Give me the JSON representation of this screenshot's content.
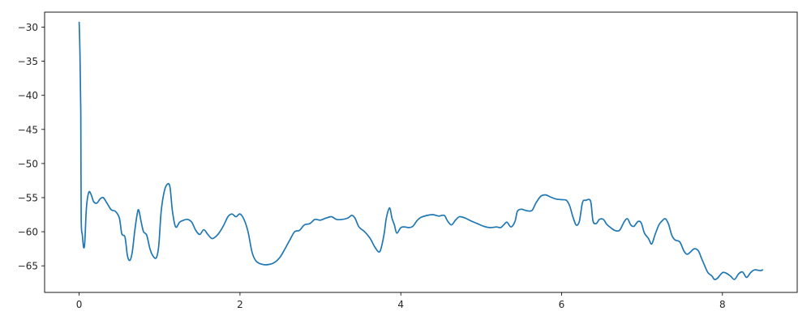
{
  "chart_data": {
    "type": "line",
    "title": "",
    "xlabel": "",
    "ylabel": "",
    "xlim": [
      -0.43,
      8.93
    ],
    "ylim": [
      -68.9,
      -27.8
    ],
    "grid": false,
    "legend": "none",
    "x_ticks": [
      0,
      2,
      4,
      6,
      8
    ],
    "x_tick_labels": [
      "0",
      "2",
      "4",
      "6",
      "8"
    ],
    "y_ticks": [
      -30,
      -35,
      -40,
      -45,
      -50,
      -55,
      -60,
      -65
    ],
    "y_tick_labels": [
      "−30",
      "−35",
      "−40",
      "−45",
      "−50",
      "−55",
      "−60",
      "−65"
    ],
    "series": [
      {
        "color": "#1f77b4",
        "points": [
          [
            0.0,
            -29.3
          ],
          [
            0.01,
            -34.0
          ],
          [
            0.02,
            -42.5
          ],
          [
            0.025,
            -58.0
          ],
          [
            0.04,
            -60.5
          ],
          [
            0.055,
            -62.3
          ],
          [
            0.07,
            -61.5
          ],
          [
            0.09,
            -56.5
          ],
          [
            0.12,
            -54.2
          ],
          [
            0.15,
            -54.6
          ],
          [
            0.18,
            -55.6
          ],
          [
            0.22,
            -55.8
          ],
          [
            0.26,
            -55.2
          ],
          [
            0.3,
            -55.0
          ],
          [
            0.35,
            -55.9
          ],
          [
            0.4,
            -56.8
          ],
          [
            0.45,
            -57.0
          ],
          [
            0.5,
            -58.0
          ],
          [
            0.53,
            -60.3
          ],
          [
            0.57,
            -60.8
          ],
          [
            0.6,
            -63.5
          ],
          [
            0.63,
            -64.2
          ],
          [
            0.66,
            -63.0
          ],
          [
            0.69,
            -60.0
          ],
          [
            0.72,
            -57.5
          ],
          [
            0.74,
            -56.8
          ],
          [
            0.77,
            -58.5
          ],
          [
            0.8,
            -60.0
          ],
          [
            0.84,
            -60.5
          ],
          [
            0.88,
            -62.5
          ],
          [
            0.92,
            -63.6
          ],
          [
            0.96,
            -63.8
          ],
          [
            0.99,
            -62.0
          ],
          [
            1.02,
            -57.0
          ],
          [
            1.06,
            -54.0
          ],
          [
            1.1,
            -53.0
          ],
          [
            1.13,
            -53.5
          ],
          [
            1.16,
            -57.0
          ],
          [
            1.2,
            -59.3
          ],
          [
            1.25,
            -58.6
          ],
          [
            1.3,
            -58.3
          ],
          [
            1.35,
            -58.2
          ],
          [
            1.4,
            -58.6
          ],
          [
            1.45,
            -59.8
          ],
          [
            1.5,
            -60.4
          ],
          [
            1.55,
            -59.7
          ],
          [
            1.6,
            -60.4
          ],
          [
            1.65,
            -61.0
          ],
          [
            1.7,
            -60.7
          ],
          [
            1.75,
            -60.0
          ],
          [
            1.8,
            -59.0
          ],
          [
            1.85,
            -57.8
          ],
          [
            1.9,
            -57.4
          ],
          [
            1.95,
            -57.8
          ],
          [
            2.0,
            -57.4
          ],
          [
            2.05,
            -58.2
          ],
          [
            2.1,
            -60.0
          ],
          [
            2.15,
            -63.0
          ],
          [
            2.2,
            -64.3
          ],
          [
            2.28,
            -64.8
          ],
          [
            2.36,
            -64.8
          ],
          [
            2.43,
            -64.5
          ],
          [
            2.5,
            -63.7
          ],
          [
            2.56,
            -62.5
          ],
          [
            2.62,
            -61.2
          ],
          [
            2.68,
            -60.0
          ],
          [
            2.74,
            -59.8
          ],
          [
            2.8,
            -59.0
          ],
          [
            2.87,
            -58.8
          ],
          [
            2.93,
            -58.2
          ],
          [
            3.0,
            -58.3
          ],
          [
            3.07,
            -58.0
          ],
          [
            3.14,
            -57.8
          ],
          [
            3.2,
            -58.2
          ],
          [
            3.27,
            -58.2
          ],
          [
            3.34,
            -58.0
          ],
          [
            3.39,
            -57.6
          ],
          [
            3.43,
            -58.0
          ],
          [
            3.48,
            -59.3
          ],
          [
            3.55,
            -60.0
          ],
          [
            3.62,
            -61.0
          ],
          [
            3.68,
            -62.3
          ],
          [
            3.74,
            -62.9
          ],
          [
            3.79,
            -60.5
          ],
          [
            3.82,
            -58.0
          ],
          [
            3.86,
            -56.5
          ],
          [
            3.89,
            -58.0
          ],
          [
            3.92,
            -59.0
          ],
          [
            3.95,
            -60.2
          ],
          [
            4.0,
            -59.4
          ],
          [
            4.05,
            -59.3
          ],
          [
            4.1,
            -59.4
          ],
          [
            4.15,
            -59.2
          ],
          [
            4.2,
            -58.4
          ],
          [
            4.25,
            -57.9
          ],
          [
            4.33,
            -57.6
          ],
          [
            4.4,
            -57.5
          ],
          [
            4.47,
            -57.7
          ],
          [
            4.54,
            -57.6
          ],
          [
            4.58,
            -58.4
          ],
          [
            4.63,
            -59.0
          ],
          [
            4.68,
            -58.3
          ],
          [
            4.73,
            -57.8
          ],
          [
            4.8,
            -58.0
          ],
          [
            4.87,
            -58.4
          ],
          [
            4.95,
            -58.8
          ],
          [
            5.03,
            -59.2
          ],
          [
            5.11,
            -59.4
          ],
          [
            5.19,
            -59.3
          ],
          [
            5.24,
            -59.4
          ],
          [
            5.28,
            -59.0
          ],
          [
            5.32,
            -58.6
          ],
          [
            5.37,
            -59.3
          ],
          [
            5.42,
            -58.5
          ],
          [
            5.45,
            -57.0
          ],
          [
            5.5,
            -56.7
          ],
          [
            5.56,
            -56.9
          ],
          [
            5.63,
            -56.9
          ],
          [
            5.68,
            -55.8
          ],
          [
            5.74,
            -54.8
          ],
          [
            5.8,
            -54.6
          ],
          [
            5.86,
            -54.9
          ],
          [
            5.93,
            -55.2
          ],
          [
            6.0,
            -55.3
          ],
          [
            6.06,
            -55.4
          ],
          [
            6.1,
            -56.2
          ],
          [
            6.14,
            -57.8
          ],
          [
            6.18,
            -59.0
          ],
          [
            6.22,
            -58.5
          ],
          [
            6.26,
            -55.7
          ],
          [
            6.3,
            -55.4
          ],
          [
            6.36,
            -55.5
          ],
          [
            6.39,
            -58.4
          ],
          [
            6.43,
            -58.8
          ],
          [
            6.47,
            -58.2
          ],
          [
            6.52,
            -58.2
          ],
          [
            6.56,
            -58.9
          ],
          [
            6.61,
            -59.4
          ],
          [
            6.66,
            -59.8
          ],
          [
            6.72,
            -59.8
          ],
          [
            6.78,
            -58.5
          ],
          [
            6.82,
            -58.1
          ],
          [
            6.86,
            -59.0
          ],
          [
            6.9,
            -59.2
          ],
          [
            6.95,
            -58.5
          ],
          [
            6.99,
            -58.7
          ],
          [
            7.03,
            -60.2
          ],
          [
            7.08,
            -61.0
          ],
          [
            7.12,
            -61.8
          ],
          [
            7.16,
            -60.5
          ],
          [
            7.21,
            -59.0
          ],
          [
            7.25,
            -58.4
          ],
          [
            7.29,
            -58.1
          ],
          [
            7.33,
            -58.9
          ],
          [
            7.37,
            -60.5
          ],
          [
            7.41,
            -61.2
          ],
          [
            7.47,
            -61.5
          ],
          [
            7.52,
            -62.8
          ],
          [
            7.56,
            -63.3
          ],
          [
            7.6,
            -63.0
          ],
          [
            7.65,
            -62.5
          ],
          [
            7.7,
            -62.8
          ],
          [
            7.74,
            -63.9
          ],
          [
            7.78,
            -65.0
          ],
          [
            7.82,
            -66.0
          ],
          [
            7.87,
            -66.5
          ],
          [
            7.9,
            -67.0
          ],
          [
            7.94,
            -66.8
          ],
          [
            8.0,
            -66.0
          ],
          [
            8.05,
            -66.1
          ],
          [
            8.1,
            -66.5
          ],
          [
            8.15,
            -67.0
          ],
          [
            8.2,
            -66.2
          ],
          [
            8.25,
            -65.9
          ],
          [
            8.3,
            -66.7
          ],
          [
            8.35,
            -66.0
          ],
          [
            8.4,
            -65.6
          ],
          [
            8.47,
            -65.7
          ],
          [
            8.5,
            -65.6
          ]
        ]
      }
    ]
  }
}
